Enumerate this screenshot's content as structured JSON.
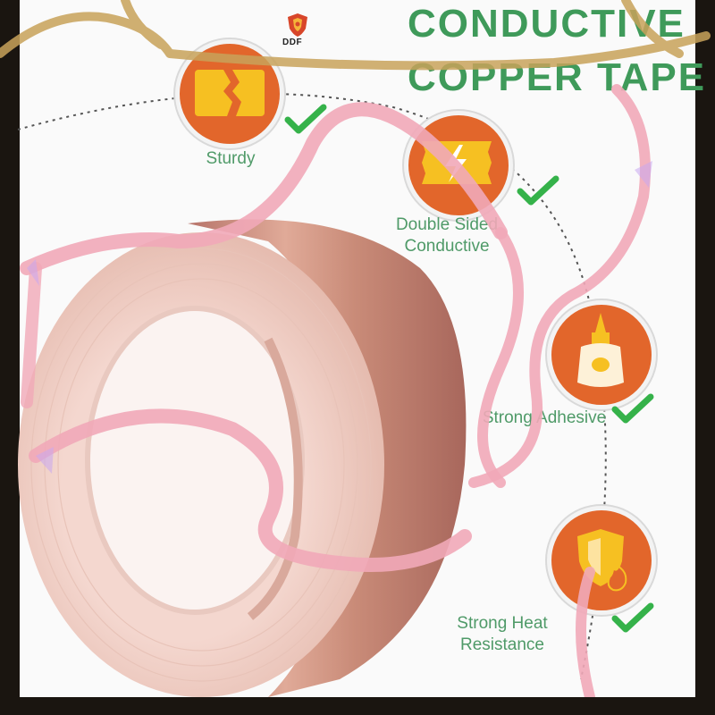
{
  "brand": {
    "logo_text": "DDF",
    "logo_icon": "shield-crest-icon"
  },
  "title": {
    "line1": "CONDUCTIVE",
    "line2": "COPPER TAPE"
  },
  "features": [
    {
      "label": "Sturdy",
      "icon": "cracked-block-icon",
      "check": "green-check-icon"
    },
    {
      "label": "Double Sided\nConductive",
      "icon": "lightning-tape-icon",
      "check": "green-check-icon"
    },
    {
      "label": "Strong Adhesive",
      "icon": "glue-bottle-icon",
      "check": "green-check-icon"
    },
    {
      "label": "Strong Heat\nResistance",
      "icon": "heat-shield-icon",
      "check": "green-check-icon"
    }
  ],
  "colors": {
    "accent_green": "#3f9a5a",
    "label_green": "#4f9a68",
    "badge_orange": "#e2662b",
    "icon_yellow": "#f6c022",
    "copper": "#c98b78",
    "ribbon_pink": "#f1a9b8",
    "gold_frame": "#c8a25a"
  }
}
